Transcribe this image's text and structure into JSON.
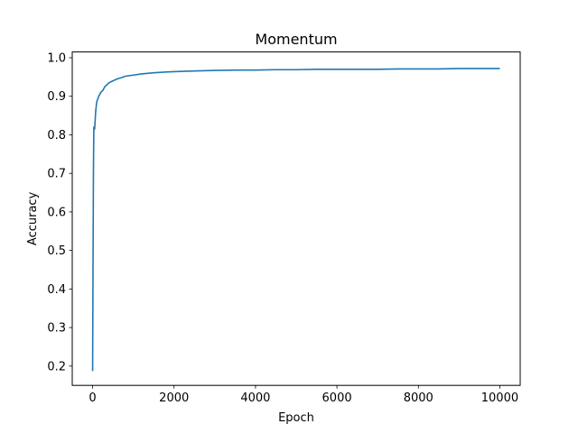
{
  "chart_data": {
    "type": "line",
    "title": "Momentum",
    "xlabel": "Epoch",
    "ylabel": "Accuracy",
    "xlim": [
      -500,
      10500
    ],
    "ylim": [
      0.15,
      1.015
    ],
    "xticks": [
      0,
      2000,
      4000,
      6000,
      8000,
      10000
    ],
    "xtick_labels": [
      "0",
      "2000",
      "4000",
      "6000",
      "8000",
      "10000"
    ],
    "yticks": [
      0.2,
      0.3,
      0.4,
      0.5,
      0.6,
      0.7,
      0.8,
      0.9,
      1.0
    ],
    "ytick_labels": [
      "0.2",
      "0.3",
      "0.4",
      "0.5",
      "0.6",
      "0.7",
      "0.8",
      "0.9",
      "1.0"
    ],
    "grid": false,
    "line_color": "#1f77b4",
    "series": [
      {
        "x": [
          0,
          10,
          20,
          30,
          50,
          75,
          100,
          150,
          200,
          250,
          300,
          400,
          500,
          600,
          700,
          800,
          1000,
          1200,
          1500,
          1800,
          2000,
          2300,
          2600,
          3000,
          3500,
          4000,
          4500,
          5000,
          5500,
          6000,
          6500,
          7000,
          7500,
          8000,
          8500,
          9000,
          9500,
          10000
        ],
        "y": [
          0.187,
          0.45,
          0.7,
          0.82,
          0.815,
          0.86,
          0.885,
          0.9,
          0.91,
          0.915,
          0.925,
          0.935,
          0.94,
          0.945,
          0.948,
          0.952,
          0.955,
          0.958,
          0.961,
          0.963,
          0.964,
          0.965,
          0.966,
          0.967,
          0.968,
          0.968,
          0.969,
          0.969,
          0.97,
          0.97,
          0.97,
          0.97,
          0.971,
          0.971,
          0.971,
          0.972,
          0.972,
          0.972
        ]
      }
    ]
  }
}
